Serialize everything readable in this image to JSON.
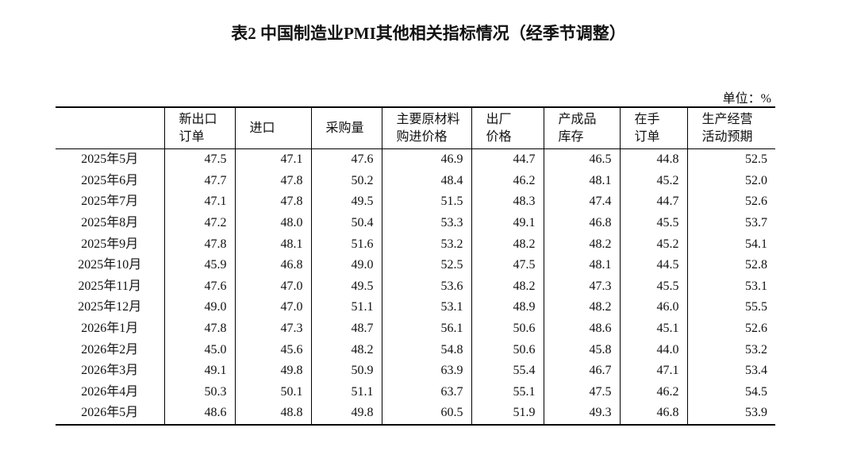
{
  "title": "表2 中国制造业PMI其他相关指标情况（经季节调整）",
  "unit": "单位：%",
  "table": {
    "header": [
      [
        "新出口",
        "订单"
      ],
      [
        "进口"
      ],
      [
        "采购量"
      ],
      [
        "主要原材料",
        "购进价格"
      ],
      [
        "出厂",
        "价格"
      ],
      [
        "产成品",
        "库存"
      ],
      [
        "在手",
        "订单"
      ],
      [
        "生产经营",
        "活动预期"
      ]
    ],
    "rows": [
      [
        "2025年5月",
        "47.5",
        "47.1",
        "47.6",
        "46.9",
        "44.7",
        "46.5",
        "44.8",
        "52.5"
      ],
      [
        "2025年6月",
        "47.7",
        "47.8",
        "50.2",
        "48.4",
        "46.2",
        "48.1",
        "45.2",
        "52.0"
      ],
      [
        "2025年7月",
        "47.1",
        "47.8",
        "49.5",
        "51.5",
        "48.3",
        "47.4",
        "44.7",
        "52.6"
      ],
      [
        "2025年8月",
        "47.2",
        "48.0",
        "50.4",
        "53.3",
        "49.1",
        "46.8",
        "45.5",
        "53.7"
      ],
      [
        "2025年9月",
        "47.8",
        "48.1",
        "51.6",
        "53.2",
        "48.2",
        "48.2",
        "45.2",
        "54.1"
      ],
      [
        "2025年10月",
        "45.9",
        "46.8",
        "49.0",
        "52.5",
        "47.5",
        "48.1",
        "44.5",
        "52.8"
      ],
      [
        "2025年11月",
        "47.6",
        "47.0",
        "49.5",
        "53.6",
        "48.2",
        "47.3",
        "45.5",
        "53.1"
      ],
      [
        "2025年12月",
        "49.0",
        "47.0",
        "51.1",
        "53.1",
        "48.9",
        "48.2",
        "46.0",
        "55.5"
      ],
      [
        "2026年1月",
        "47.8",
        "47.3",
        "48.7",
        "56.1",
        "50.6",
        "48.6",
        "45.1",
        "52.6"
      ],
      [
        "2026年2月",
        "45.0",
        "45.6",
        "48.2",
        "54.8",
        "50.6",
        "45.8",
        "44.0",
        "53.2"
      ],
      [
        "2026年3月",
        "49.1",
        "49.8",
        "50.9",
        "63.9",
        "55.4",
        "46.7",
        "47.1",
        "53.4"
      ],
      [
        "2026年4月",
        "50.3",
        "50.1",
        "51.1",
        "63.7",
        "55.1",
        "47.5",
        "46.2",
        "54.5"
      ],
      [
        "2026年5月",
        "48.6",
        "48.8",
        "49.8",
        "60.5",
        "51.9",
        "49.3",
        "46.8",
        "53.9"
      ]
    ]
  }
}
